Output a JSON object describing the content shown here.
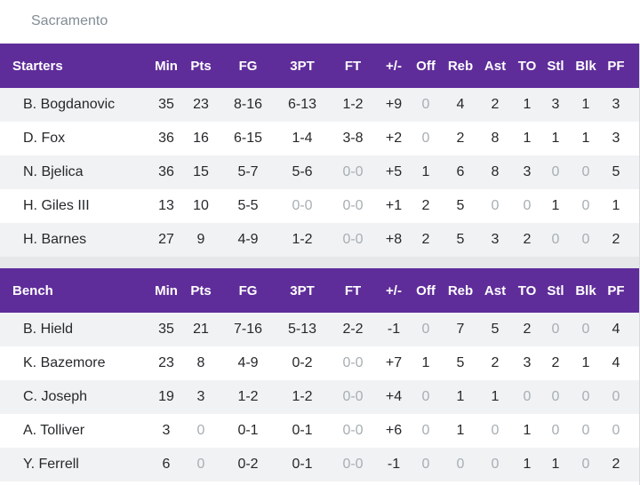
{
  "team": "Sacramento",
  "columns": [
    "Min",
    "Pts",
    "FG",
    "3PT",
    "FT",
    "+/-",
    "Off",
    "Reb",
    "Ast",
    "TO",
    "Stl",
    "Blk",
    "PF"
  ],
  "sections": [
    {
      "title": "Starters",
      "players": [
        {
          "name": "B. Bogdanovic",
          "stats": [
            "35",
            "23",
            "8-16",
            "6-13",
            "1-2",
            "+9",
            "0",
            "4",
            "2",
            "1",
            "3",
            "1",
            "3"
          ]
        },
        {
          "name": "D. Fox",
          "stats": [
            "36",
            "16",
            "6-15",
            "1-4",
            "3-8",
            "+2",
            "0",
            "2",
            "8",
            "1",
            "1",
            "1",
            "3"
          ]
        },
        {
          "name": "N. Bjelica",
          "stats": [
            "36",
            "15",
            "5-7",
            "5-6",
            "0-0",
            "+5",
            "1",
            "6",
            "8",
            "3",
            "0",
            "0",
            "5"
          ]
        },
        {
          "name": "H. Giles III",
          "stats": [
            "13",
            "10",
            "5-5",
            "0-0",
            "0-0",
            "+1",
            "2",
            "5",
            "0",
            "0",
            "1",
            "0",
            "1"
          ]
        },
        {
          "name": "H. Barnes",
          "stats": [
            "27",
            "9",
            "4-9",
            "1-2",
            "0-0",
            "+8",
            "2",
            "5",
            "3",
            "2",
            "0",
            "0",
            "2"
          ]
        }
      ]
    },
    {
      "title": "Bench",
      "players": [
        {
          "name": "B. Hield",
          "stats": [
            "35",
            "21",
            "7-16",
            "5-13",
            "2-2",
            "-1",
            "0",
            "7",
            "5",
            "2",
            "0",
            "0",
            "4"
          ]
        },
        {
          "name": "K. Bazemore",
          "stats": [
            "23",
            "8",
            "4-9",
            "0-2",
            "0-0",
            "+7",
            "1",
            "5",
            "2",
            "3",
            "2",
            "1",
            "4"
          ]
        },
        {
          "name": "C. Joseph",
          "stats": [
            "19",
            "3",
            "1-2",
            "1-2",
            "0-0",
            "+4",
            "0",
            "1",
            "1",
            "0",
            "0",
            "0",
            "0"
          ]
        },
        {
          "name": "A. Tolliver",
          "stats": [
            "3",
            "0",
            "0-1",
            "0-1",
            "0-0",
            "+6",
            "0",
            "1",
            "0",
            "1",
            "0",
            "0",
            "0"
          ]
        },
        {
          "name": "Y. Ferrell",
          "stats": [
            "6",
            "0",
            "0-2",
            "0-1",
            "0-0",
            "-1",
            "0",
            "0",
            "0",
            "1",
            "1",
            "0",
            "2"
          ]
        }
      ]
    }
  ],
  "colors": {
    "header_bg": "#5f2d9a",
    "zero_text": "#a7aeb3",
    "alt_row": "#f1f2f4"
  }
}
